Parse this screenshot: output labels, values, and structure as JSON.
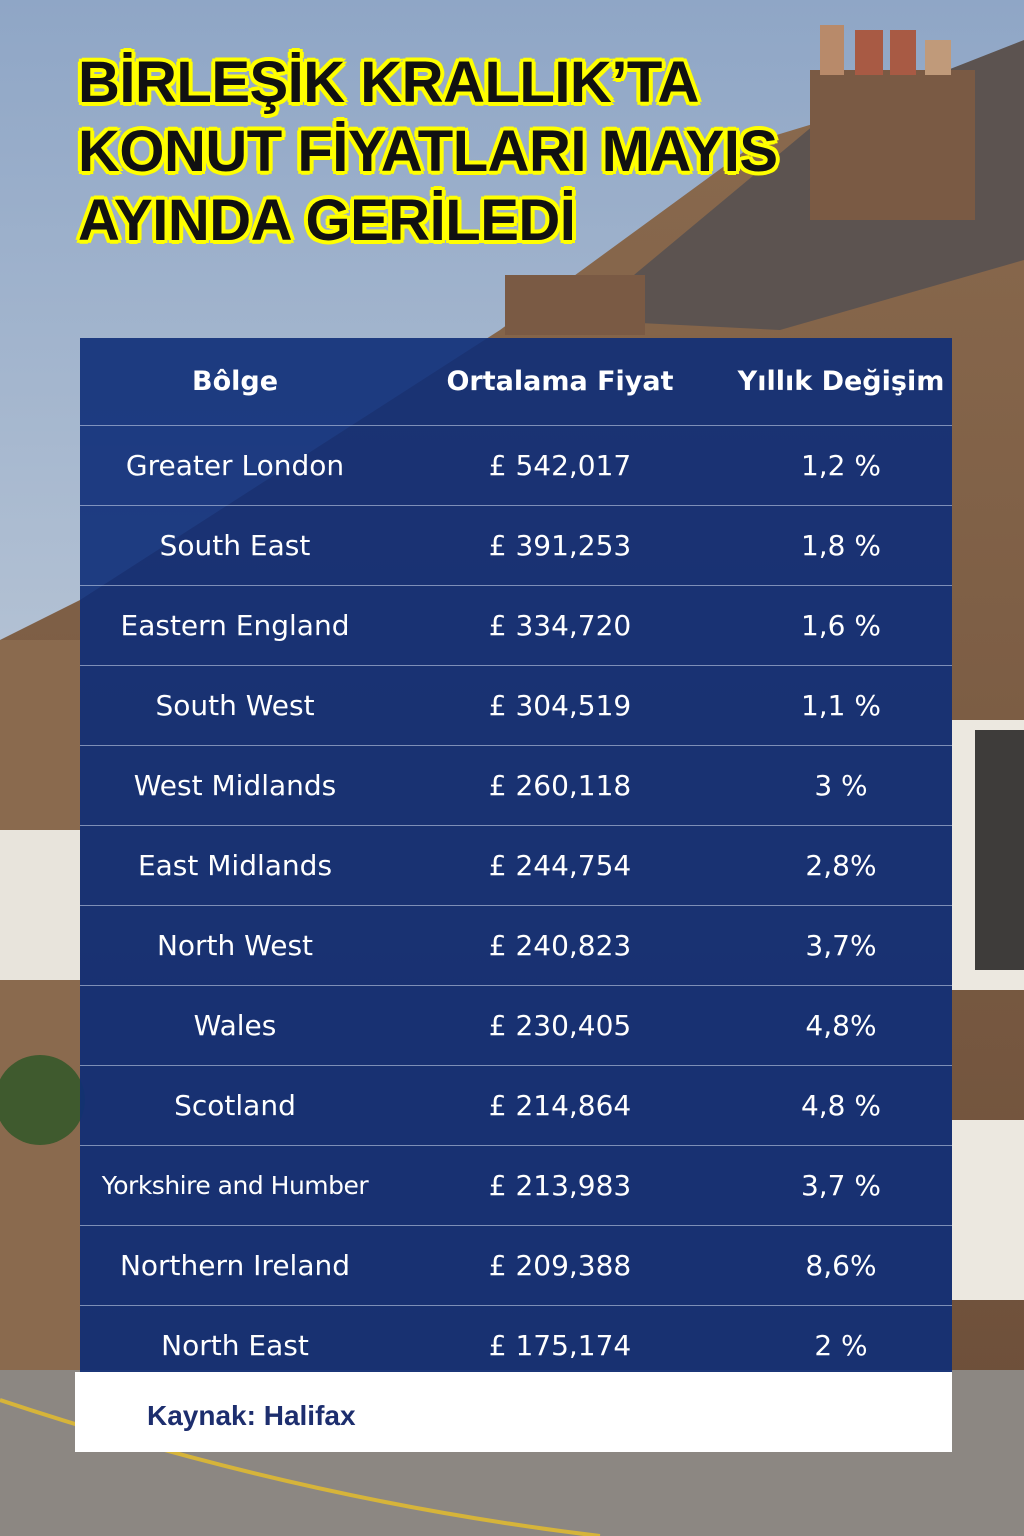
{
  "header": {
    "title_lines": [
      "BİRLEŞİK KRALLIK’TA",
      "KONUT FİYATLARI MAYIS",
      "AYINDA GERİLEDİ"
    ]
  },
  "table": {
    "columns": [
      "Bôlge",
      "Ortalama Fiyat",
      "Yıllık Değişim"
    ],
    "rows": [
      [
        "Greater London",
        "£ 542,017",
        "1,2 %"
      ],
      [
        "South East",
        "£ 391,253",
        "1,8 %"
      ],
      [
        "Eastern England",
        "£ 334,720",
        "1,6 %"
      ],
      [
        "South West",
        "£ 304,519",
        "1,1 %"
      ],
      [
        "West Midlands",
        "£ 260,118",
        "3 %"
      ],
      [
        "East Midlands",
        "£ 244,754",
        "2,8%"
      ],
      [
        "North West",
        "£ 240,823",
        "3,7%"
      ],
      [
        "Wales",
        "£ 230,405",
        "4,8%"
      ],
      [
        "Scotland",
        "£ 214,864",
        "4,8 %"
      ],
      [
        "Yorkshire and Humber",
        "£ 213,983",
        "3,7 %"
      ],
      [
        "Northern Ireland",
        "£ 209,388",
        "8,6%"
      ],
      [
        "North East",
        "£ 175,174",
        "2 %"
      ]
    ]
  },
  "footer": {
    "source": "Kaynak: Halifax"
  }
}
